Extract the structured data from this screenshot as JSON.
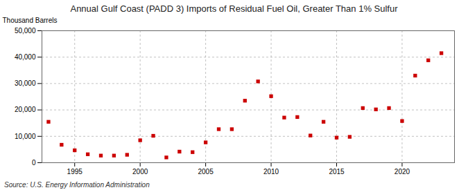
{
  "chart_data": {
    "type": "scatter",
    "title": "Annual Gulf Coast (PADD 3) Imports of Residual Fuel Oil, Greater Than 1% Sulfur",
    "ylabel": "Thousand Barrels",
    "annotation": "Source: U.S. Energy Information Administration",
    "x": [
      1993,
      1994,
      1995,
      1996,
      1997,
      1998,
      1999,
      2000,
      2001,
      2002,
      2003,
      2004,
      2005,
      2006,
      2007,
      2008,
      2009,
      2010,
      2011,
      2012,
      2013,
      2014,
      2015,
      2016,
      2017,
      2018,
      2019,
      2020,
      2021,
      2022,
      2023
    ],
    "values": [
      15500,
      6800,
      4700,
      3200,
      2700,
      2700,
      3000,
      8500,
      10200,
      2000,
      4200,
      4000,
      7700,
      12700,
      12700,
      23500,
      30800,
      25200,
      17100,
      17300,
      10300,
      15500,
      9500,
      9800,
      20700,
      20200,
      20700,
      15800,
      33000,
      38800,
      41500
    ],
    "color": "#cc0000",
    "marker": "square",
    "xlim": [
      1992.5,
      2024
    ],
    "xticks": [
      1995,
      2000,
      2005,
      2010,
      2015,
      2020
    ],
    "ylim": [
      0,
      50000
    ],
    "yticks": [
      0,
      {
        "value": 10000,
        "label": "10,000"
      },
      {
        "value": 20000,
        "label": "20,000"
      },
      {
        "value": 30000,
        "label": "30,000"
      },
      {
        "value": 40000,
        "label": "40,000"
      },
      {
        "value": 50000,
        "label": "50,000"
      }
    ],
    "grid": true
  }
}
